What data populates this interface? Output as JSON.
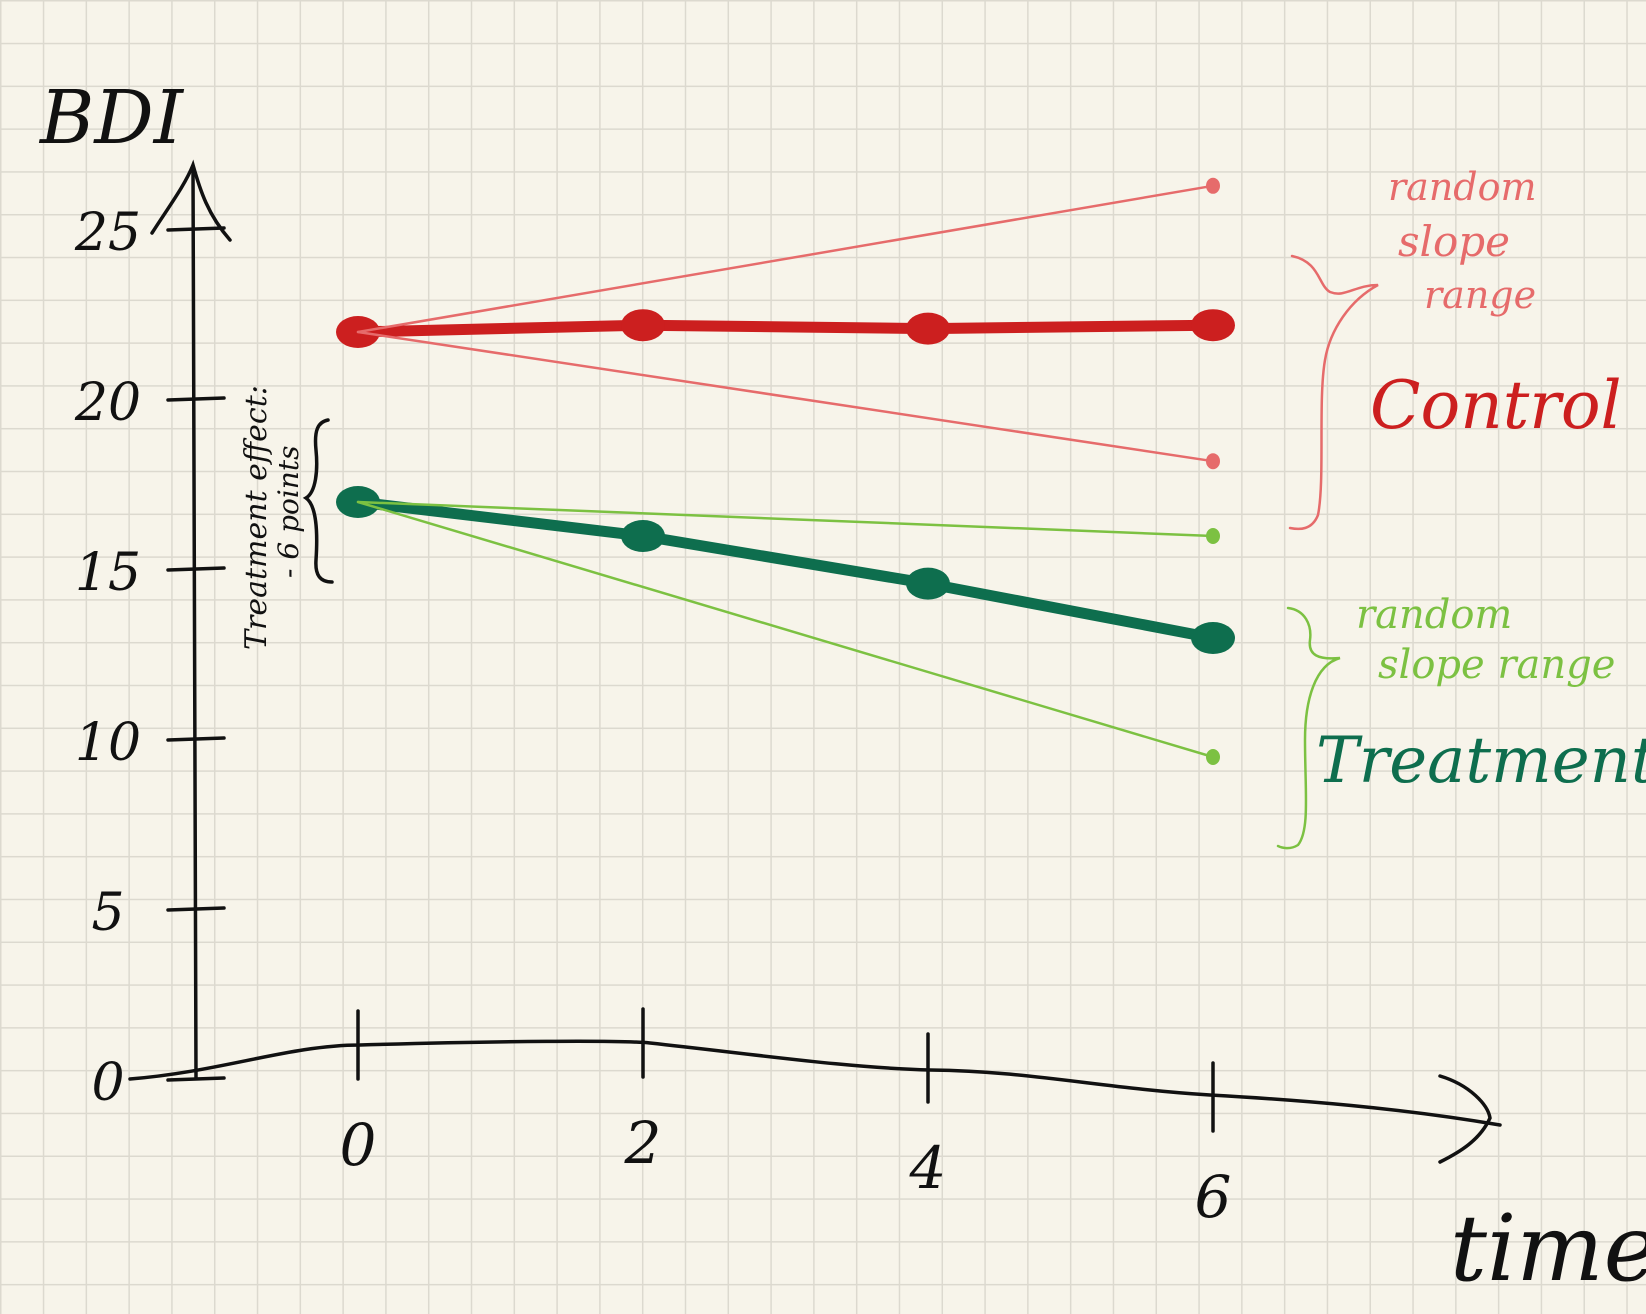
{
  "chart_data": {
    "type": "line",
    "title": "",
    "ylabel": "BDI",
    "xlabel": "time",
    "x_ticks": [
      0,
      2,
      4,
      6
    ],
    "y_ticks": [
      0,
      5,
      10,
      15,
      20,
      25
    ],
    "xlim": [
      -1,
      9
    ],
    "ylim": [
      0,
      27
    ],
    "series": [
      {
        "name": "Control",
        "role": "mean",
        "x": [
          0,
          2,
          4,
          6
        ],
        "y": [
          22.0,
          22.2,
          22.1,
          22.2
        ],
        "color": "#cc1f1f"
      },
      {
        "name": "",
        "role": "slope-upper",
        "x": [
          0,
          6
        ],
        "y": [
          22.0,
          26.3
        ],
        "color": "#e66b6b"
      },
      {
        "name": "",
        "role": "slope-lower",
        "x": [
          0,
          6
        ],
        "y": [
          22.0,
          18.2
        ],
        "color": "#e66b6b"
      },
      {
        "name": "Treatment",
        "role": "mean",
        "x": [
          0,
          2,
          4,
          6
        ],
        "y": [
          17.0,
          16.0,
          14.6,
          13.0
        ],
        "color": "#0e6e4e"
      },
      {
        "name": "",
        "role": "slope-upper",
        "x": [
          0,
          6
        ],
        "y": [
          17.0,
          16.0
        ],
        "color": "#7cc142"
      },
      {
        "name": "",
        "role": "slope-lower",
        "x": [
          0,
          6
        ],
        "y": [
          17.0,
          9.5
        ],
        "color": "#7cc142"
      }
    ],
    "annotations": {
      "control_label": "Control",
      "treatment_label": "Treatment",
      "control_range": [
        "random",
        "slope",
        "range"
      ],
      "treatment_range": [
        "random",
        "slope range"
      ],
      "effect": [
        "Treatment effect:",
        "- 6 points"
      ]
    },
    "grid": true
  }
}
